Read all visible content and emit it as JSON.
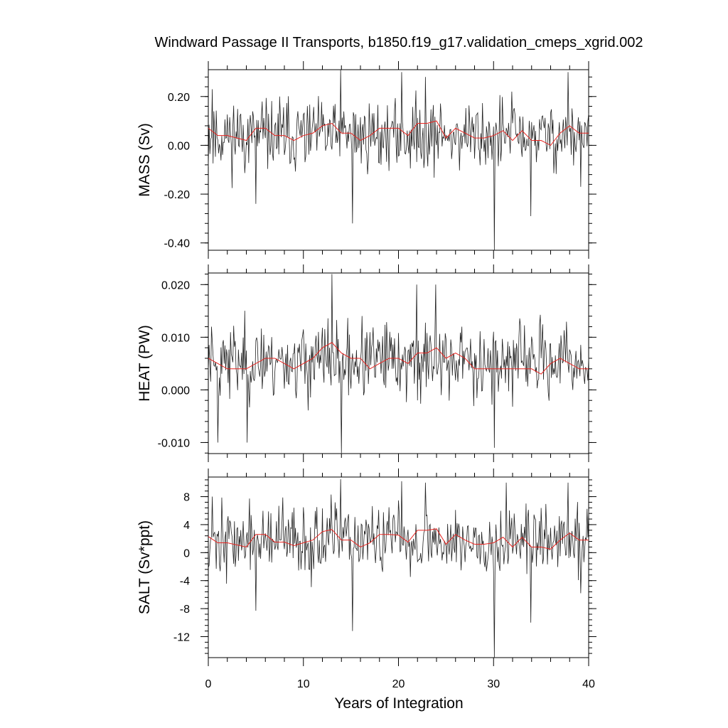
{
  "chart_data": {
    "type": "line",
    "title": "Windward Passage II Transports, b1850.f19_g17.validation_cmeps_xgrid.002",
    "xlabel": "Years of Integration",
    "xlim": [
      0,
      40
    ],
    "xticks": [
      "0",
      "10",
      "20",
      "30",
      "40"
    ],
    "grid": false,
    "panels": [
      {
        "ylabel": "MASS (Sv)",
        "ylim": [
          -0.43,
          0.31
        ],
        "yticks": [
          {
            "v": 0.2,
            "label": "0.20"
          },
          {
            "v": 0.0,
            "label": "0.00"
          },
          {
            "v": -0.2,
            "label": "-0.20"
          },
          {
            "v": -0.4,
            "label": "-0.40"
          }
        ],
        "monthly": {
          "base": 0.04,
          "amp": 0.11,
          "seed": 11,
          "extremes": [
            [
              0.4,
              0.23
            ],
            [
              5.0,
              -0.24
            ],
            [
              13.9,
              0.31
            ],
            [
              15.2,
              -0.32
            ],
            [
              20.3,
              0.3
            ],
            [
              22.8,
              0.28
            ],
            [
              30.1,
              -0.43
            ],
            [
              31.9,
              0.22
            ],
            [
              33.9,
              -0.29
            ],
            [
              39.2,
              -0.17
            ],
            [
              37.8,
              0.3
            ]
          ]
        },
        "annual": [
          0.07,
          0.04,
          0.04,
          0.03,
          0.02,
          0.07,
          0.07,
          0.04,
          0.04,
          0.02,
          0.04,
          0.05,
          0.08,
          0.09,
          0.05,
          0.05,
          0.02,
          0.04,
          0.07,
          0.07,
          0.07,
          0.04,
          0.09,
          0.09,
          0.1,
          0.03,
          0.07,
          0.05,
          0.03,
          0.03,
          0.04,
          0.06,
          0.02,
          0.06,
          0.02,
          0.02,
          0.0,
          0.05,
          0.08,
          0.05,
          0.05
        ]
      },
      {
        "ylabel": "HEAT (PW)",
        "ylim": [
          -0.0121,
          0.0222
        ],
        "yticks": [
          {
            "v": 0.02,
            "label": "0.020"
          },
          {
            "v": 0.01,
            "label": "0.010"
          },
          {
            "v": 0.0,
            "label": "0.000"
          },
          {
            "v": -0.01,
            "label": "-0.010"
          }
        ],
        "monthly": {
          "base": 0.0055,
          "amp": 0.0055,
          "seed": 23,
          "extremes": [
            [
              1.0,
              -0.01
            ],
            [
              4.1,
              -0.01
            ],
            [
              13.0,
              0.022
            ],
            [
              14.0,
              -0.012
            ],
            [
              21.9,
              0.02
            ],
            [
              23.9,
              0.02
            ],
            [
              30.1,
              -0.011
            ],
            [
              26.7,
              0.012
            ],
            [
              0.3,
              0.012
            ]
          ]
        },
        "annual": [
          0.006,
          0.005,
          0.004,
          0.004,
          0.004,
          0.005,
          0.006,
          0.006,
          0.005,
          0.004,
          0.005,
          0.006,
          0.008,
          0.009,
          0.007,
          0.006,
          0.006,
          0.004,
          0.005,
          0.006,
          0.006,
          0.005,
          0.007,
          0.007,
          0.008,
          0.006,
          0.007,
          0.006,
          0.004,
          0.004,
          0.004,
          0.004,
          0.004,
          0.004,
          0.004,
          0.003,
          0.005,
          0.006,
          0.005,
          0.004,
          0.004
        ]
      },
      {
        "ylabel": "SALT (Sv*ppt)",
        "ylim": [
          -15.0,
          10.8
        ],
        "yticks": [
          {
            "v": 8,
            "label": "8"
          },
          {
            "v": 4,
            "label": "4"
          },
          {
            "v": 0,
            "label": "0"
          },
          {
            "v": -4,
            "label": "-4"
          },
          {
            "v": -8,
            "label": "-8"
          },
          {
            "v": -12,
            "label": "-12"
          }
        ],
        "monthly": {
          "base": 1.7,
          "amp": 3.8,
          "seed": 37,
          "extremes": [
            [
              0.4,
              8.0
            ],
            [
              5.0,
              -8.3
            ],
            [
              13.9,
              10.5
            ],
            [
              15.2,
              -11.2
            ],
            [
              20.3,
              10.2
            ],
            [
              22.8,
              10.0
            ],
            [
              30.1,
              -15.0
            ],
            [
              31.3,
              10.0
            ],
            [
              33.9,
              -10.0
            ],
            [
              39.2,
              -5.8
            ],
            [
              37.8,
              10.0
            ]
          ]
        },
        "annual": [
          2.3,
          1.4,
          1.4,
          1.1,
          0.8,
          2.6,
          2.6,
          1.5,
          1.5,
          1.0,
          1.4,
          1.8,
          3.0,
          3.3,
          1.8,
          1.8,
          0.8,
          1.4,
          2.6,
          2.6,
          2.5,
          1.5,
          3.2,
          3.2,
          3.4,
          1.2,
          2.6,
          1.8,
          1.2,
          1.2,
          1.4,
          2.2,
          0.8,
          2.2,
          0.8,
          0.8,
          0.5,
          1.8,
          2.8,
          1.8,
          1.8
        ]
      }
    ]
  }
}
